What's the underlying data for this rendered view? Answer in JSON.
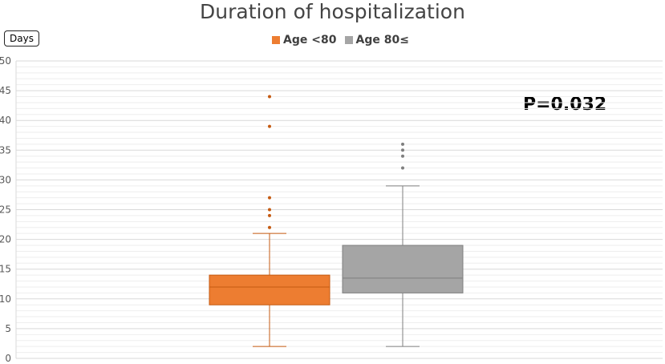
{
  "chart_data": {
    "type": "box",
    "title": "Duration of hospitalization",
    "ylabel": "Days",
    "ylim": [
      0,
      50
    ],
    "yticks": [
      0,
      5,
      10,
      15,
      20,
      25,
      30,
      35,
      40,
      45,
      50
    ],
    "grid": "horizontal",
    "legend_position": "top",
    "annotation": "P=0.032",
    "series": [
      {
        "name": "Age <80",
        "color": "#ED7D31",
        "edge_color": "#C55A11",
        "whisker_low": 2,
        "q1": 9,
        "median": 12,
        "q3": 14,
        "whisker_high": 21,
        "outliers": [
          22,
          24,
          25,
          27,
          39,
          44
        ]
      },
      {
        "name": "Age 80≤",
        "color": "#A5A5A5",
        "edge_color": "#7F7F7F",
        "whisker_low": 2,
        "q1": 11,
        "median": 13.5,
        "q3": 19,
        "whisker_high": 29,
        "outliers": [
          32,
          34,
          35,
          36
        ]
      }
    ]
  }
}
